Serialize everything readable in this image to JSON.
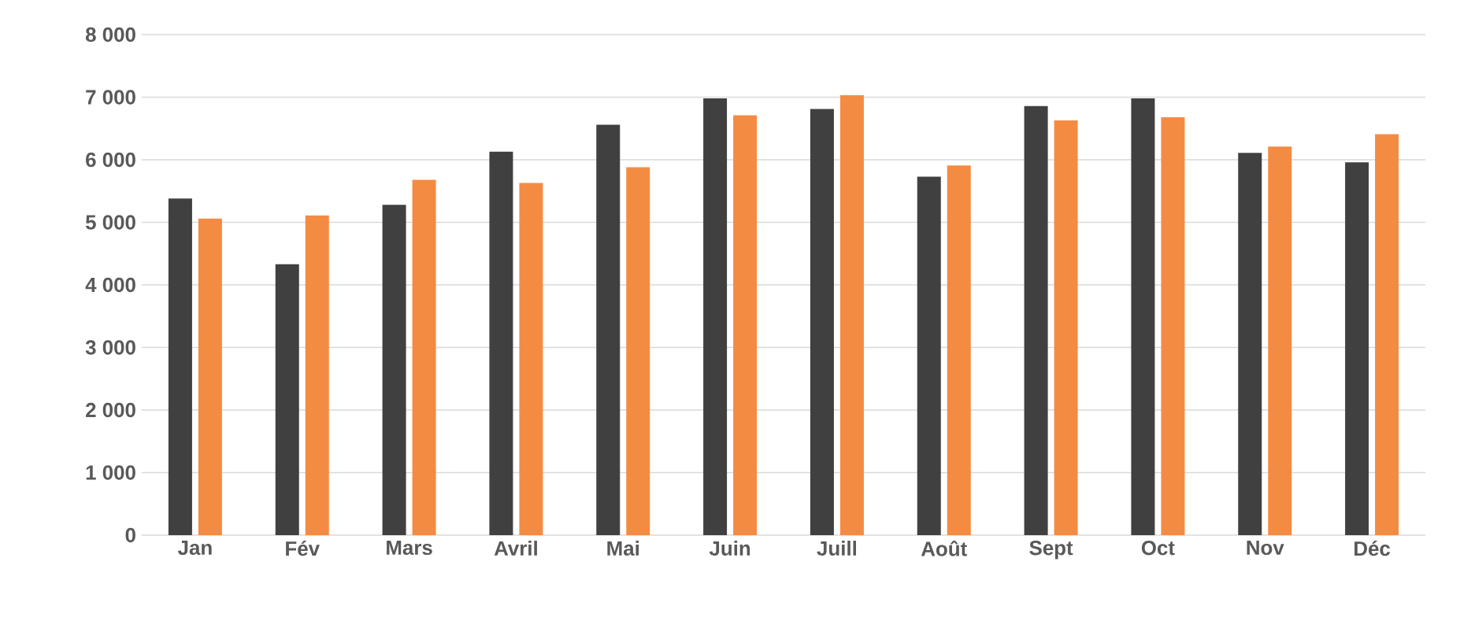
{
  "chart_data": {
    "type": "bar",
    "categories": [
      "Jan",
      "Fév",
      "Mars",
      "Avril",
      "Mai",
      "Juin",
      "Juill",
      "Août",
      "Sept",
      "Oct",
      "Nov",
      "Déc"
    ],
    "series": [
      {
        "color": "#404040",
        "values": [
          5380,
          4330,
          5280,
          6130,
          6560,
          6980,
          6810,
          5730,
          6860,
          6980,
          6110,
          5960
        ]
      },
      {
        "color": "#f48b42",
        "values": [
          5060,
          5110,
          5680,
          5630,
          5880,
          6710,
          7030,
          5910,
          6630,
          6680,
          6210,
          6410
        ]
      }
    ],
    "ylim": [
      0,
      8000
    ],
    "yticks": [
      {
        "value": 0,
        "label": "0"
      },
      {
        "value": 1000,
        "label": "1 000"
      },
      {
        "value": 2000,
        "label": "2 000"
      },
      {
        "value": 3000,
        "label": "3 000"
      },
      {
        "value": 4000,
        "label": "4 000"
      },
      {
        "value": 5000,
        "label": "5 000"
      },
      {
        "value": 6000,
        "label": "6 000"
      },
      {
        "value": 7000,
        "label": "7 000"
      },
      {
        "value": 8000,
        "label": "8 000"
      }
    ],
    "grid": "y"
  }
}
